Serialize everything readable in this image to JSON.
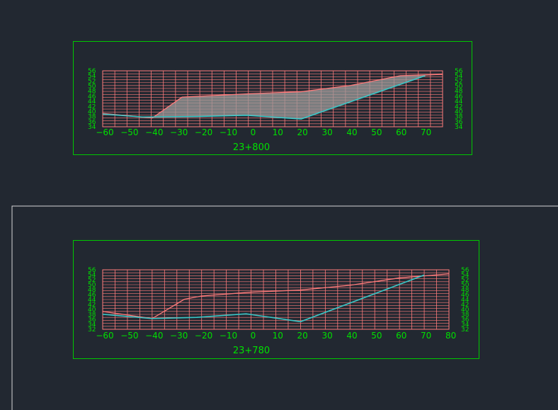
{
  "colors": {
    "background": "#222831",
    "frame": "#00c800",
    "grid": "#ff7b7b",
    "ground_line": "#ff7b7b",
    "design_line": "#39c8c8",
    "cut_fill_hatch": "#9a9a9a",
    "label": "#00e000",
    "viewport_border": "#d6d6d6"
  },
  "sections": [
    {
      "id": "upper",
      "station_label": "23+800",
      "x_tick_labels": [
        "−60",
        "−50",
        "−40",
        "−30",
        "−20",
        "−10",
        "0",
        "10",
        "20",
        "30",
        "40",
        "50",
        "60",
        "70"
      ],
      "y_tick_labels": [
        "56",
        "54",
        "52",
        "50",
        "48",
        "46",
        "44",
        "42",
        "40",
        "38",
        "36",
        "34"
      ],
      "x_range": [
        -60,
        77
      ],
      "y_range": [
        34,
        57
      ],
      "ground_profile": [
        [
          -60,
          39.5
        ],
        [
          -40,
          37.6
        ],
        [
          -28,
          46.2
        ],
        [
          -20,
          46.6
        ],
        [
          0,
          47.6
        ],
        [
          20,
          48.4
        ],
        [
          40,
          51
        ],
        [
          60,
          55
        ],
        [
          77,
          55.5
        ]
      ],
      "design_profile": [
        [
          -60,
          39.2
        ],
        [
          -44,
          38.0
        ],
        [
          -22,
          38.2
        ],
        [
          -2,
          38.7
        ],
        [
          20,
          37.2
        ],
        [
          70,
          55.0
        ]
      ],
      "hatched": true
    },
    {
      "id": "lower",
      "station_label": "23+780",
      "x_tick_labels": [
        "−60",
        "−50",
        "−40",
        "−30",
        "−20",
        "−10",
        "0",
        "10",
        "20",
        "30",
        "40",
        "50",
        "60",
        "70",
        "80"
      ],
      "y_tick_labels": [
        "56",
        "54",
        "52",
        "50",
        "48",
        "46",
        "44",
        "42",
        "40",
        "38",
        "36",
        "34",
        "32"
      ],
      "x_range": [
        -60,
        80
      ],
      "y_range": [
        32,
        57
      ],
      "ground_profile": [
        [
          -60,
          39.5
        ],
        [
          -40,
          36.5
        ],
        [
          -27,
          44.6
        ],
        [
          -20,
          46.0
        ],
        [
          0,
          47.6
        ],
        [
          20,
          48.5
        ],
        [
          40,
          50.5
        ],
        [
          60,
          53.6
        ],
        [
          80,
          55.3
        ]
      ],
      "design_profile": [
        [
          -60,
          38.3
        ],
        [
          -40,
          36.5
        ],
        [
          -22,
          37.0
        ],
        [
          -2,
          38.5
        ],
        [
          20,
          35.2
        ],
        [
          70,
          54.8
        ]
      ],
      "hatched": false
    }
  ]
}
